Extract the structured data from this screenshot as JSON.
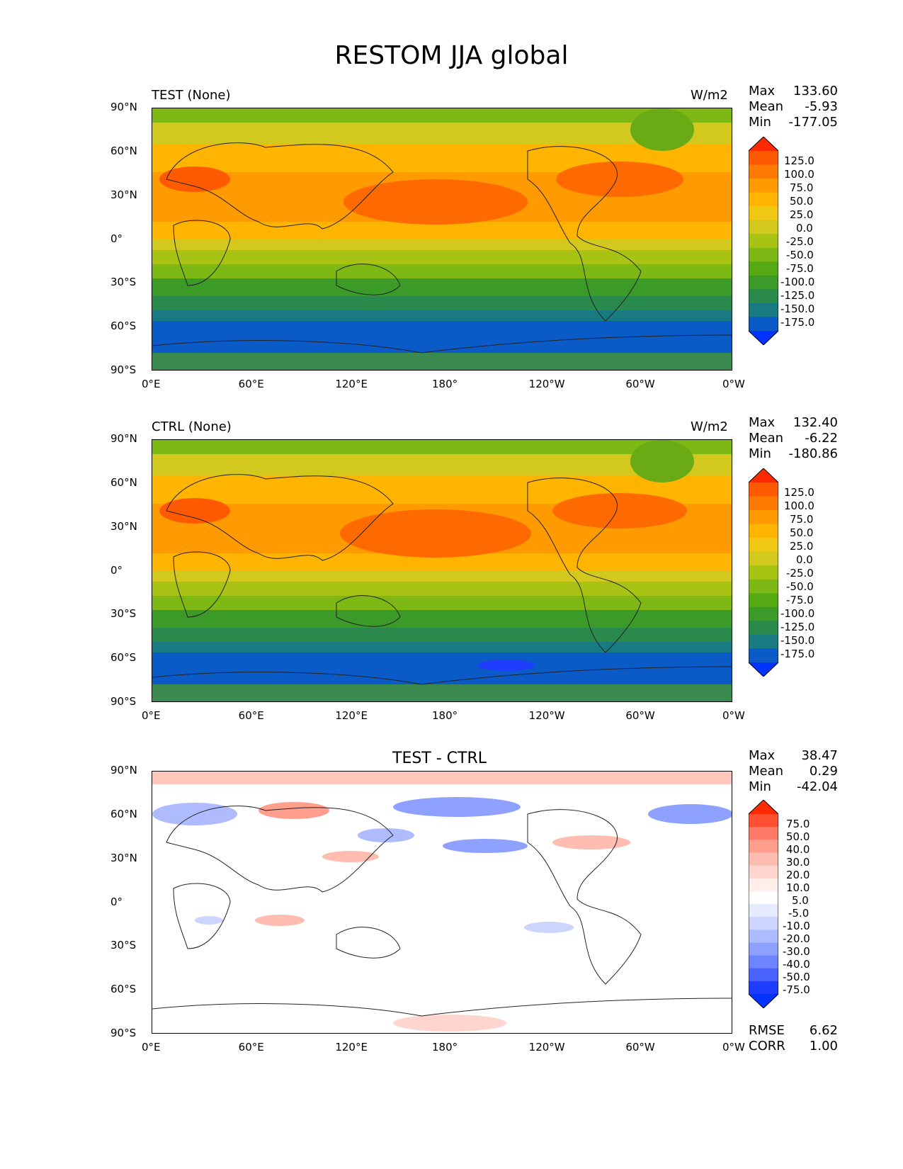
{
  "title": "RESTOM JJA global",
  "x_ticks": [
    "0°E",
    "60°E",
    "120°E",
    "180°",
    "120°W",
    "60°W",
    "0°W"
  ],
  "y_ticks": [
    "90°N",
    "60°N",
    "30°N",
    "0°",
    "30°S",
    "60°S",
    "90°S"
  ],
  "panels": [
    {
      "title_left": "TEST (None)",
      "title_right": "W/m2",
      "stats": {
        "max_label": "Max",
        "max": "133.60",
        "mean_label": "Mean",
        "mean": "-5.93",
        "min_label": "Min",
        "min": "-177.05"
      },
      "levels": [
        "125.0",
        "100.0",
        "75.0",
        "50.0",
        "25.0",
        "0.0",
        "-25.0",
        "-50.0",
        "-75.0",
        "-100.0",
        "-125.0",
        "-150.0",
        "-175.0"
      ]
    },
    {
      "title_left": "CTRL (None)",
      "title_right": "W/m2",
      "stats": {
        "max_label": "Max",
        "max": "132.40",
        "mean_label": "Mean",
        "mean": "-6.22",
        "min_label": "Min",
        "min": "-180.86"
      },
      "levels": [
        "125.0",
        "100.0",
        "75.0",
        "50.0",
        "25.0",
        "0.0",
        "-25.0",
        "-50.0",
        "-75.0",
        "-100.0",
        "-125.0",
        "-150.0",
        "-175.0"
      ]
    },
    {
      "title_center": "TEST - CTRL",
      "stats": {
        "max_label": "Max",
        "max": "38.47",
        "mean_label": "Mean",
        "mean": "0.29",
        "min_label": "Min",
        "min": "-42.04"
      },
      "levels": [
        "75.0",
        "50.0",
        "40.0",
        "30.0",
        "20.0",
        "10.0",
        "5.0",
        "-5.0",
        "-10.0",
        "-20.0",
        "-30.0",
        "-40.0",
        "-50.0",
        "-75.0"
      ],
      "rmse_label": "RMSE",
      "rmse": "6.62",
      "corr_label": "CORR",
      "corr": "1.00"
    }
  ],
  "colors": {
    "field_cbar": [
      "#ff2a00",
      "#ff5a00",
      "#ff7a00",
      "#ff9a00",
      "#ffb400",
      "#f0c814",
      "#d2c81e",
      "#a8c314",
      "#7db814",
      "#55aa14",
      "#3c9b28",
      "#2a8a4c",
      "#1a7a82",
      "#0a5ac8",
      "#0033ff"
    ],
    "diff_cbar": [
      "#ff2a00",
      "#ff5033",
      "#ff7a66",
      "#ff9e8c",
      "#ffbcb0",
      "#ffd6cf",
      "#ffeeea",
      "#ffffff",
      "#e6ebff",
      "#ccd5ff",
      "#aebcff",
      "#8fa1ff",
      "#6e83ff",
      "#4a62ff",
      "#1f3dff",
      "#0033ff"
    ]
  }
}
